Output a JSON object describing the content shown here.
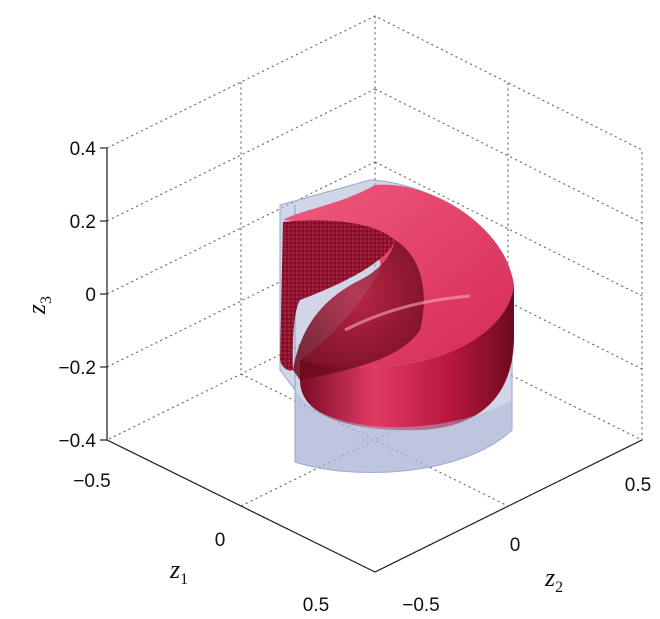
{
  "chart_data": {
    "type": "3d-surface",
    "title": "",
    "axes": {
      "z1": {
        "label": "z",
        "subscript": "1",
        "ticks": [
          "−0.5",
          "0",
          "0.5"
        ],
        "tick_values": [
          -0.5,
          0,
          0.5
        ]
      },
      "z2": {
        "label": "z",
        "subscript": "2",
        "ticks": [
          "−0.5",
          "0",
          "0.5"
        ],
        "tick_values": [
          -0.5,
          0,
          0.5
        ]
      },
      "z3": {
        "label": "z",
        "subscript": "3",
        "ticks": [
          "0.4",
          "0.2",
          "0",
          "−0.2",
          "−0.4"
        ],
        "tick_values": [
          0.4,
          0.2,
          0,
          -0.2,
          -0.4
        ]
      }
    },
    "grid": true,
    "surfaces": [
      {
        "shape": "three-quarter cylinder (outer set)",
        "color": "#aab4d6",
        "opacity": 0.55,
        "z3_range": [
          -0.4,
          0.26
        ]
      },
      {
        "shape": "three-quarter cylinder (inner set, rounded)",
        "color": "#d81e4a",
        "opacity": 0.9,
        "z3_range": [
          -0.2,
          0.3
        ]
      }
    ]
  }
}
